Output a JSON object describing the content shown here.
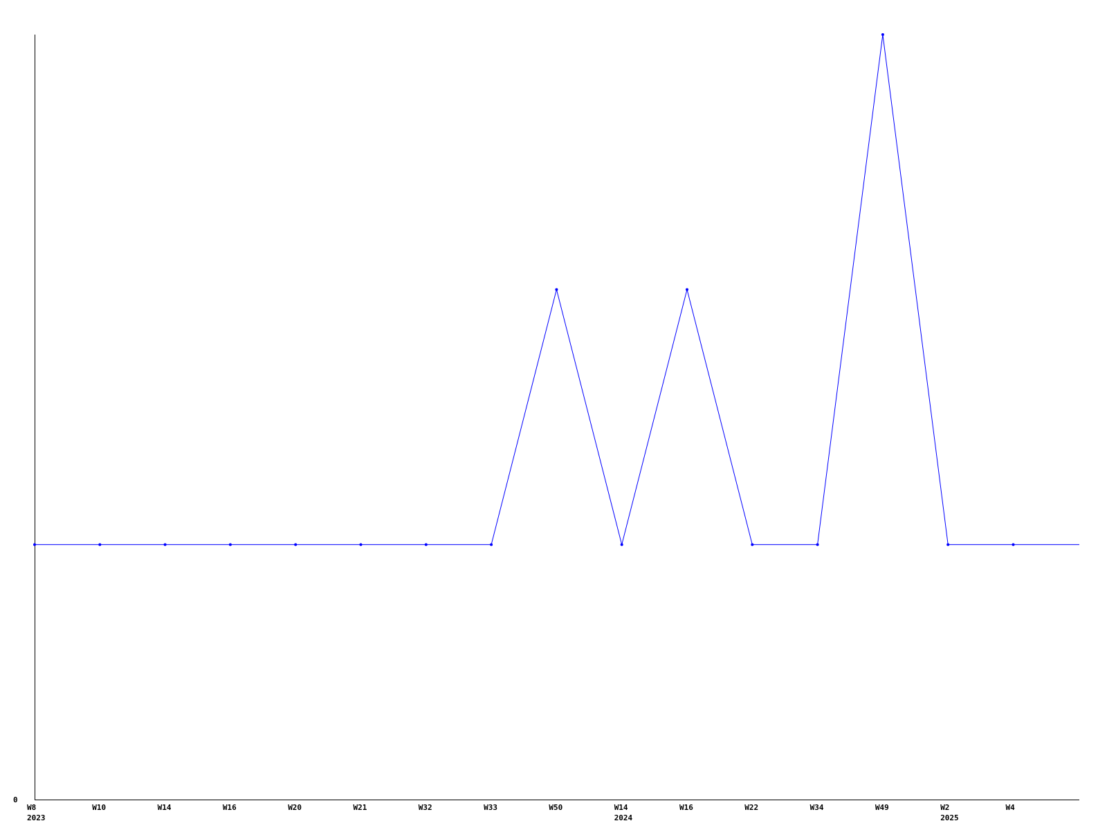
{
  "chart_data": {
    "type": "line",
    "title": "",
    "xlabel": "",
    "ylabel": "",
    "categories": [
      "W8",
      "W10",
      "W14",
      "W16",
      "W20",
      "W21",
      "W32",
      "W33",
      "W50",
      "W14",
      "W16",
      "W22",
      "W34",
      "W49",
      "W2",
      "W4"
    ],
    "year_labels": [
      {
        "index": 0,
        "label": "2023"
      },
      {
        "index": 9,
        "label": "2024"
      },
      {
        "index": 14,
        "label": "2025"
      }
    ],
    "series": [
      {
        "values": [
          1,
          1,
          1,
          1,
          1,
          1,
          1,
          1,
          2,
          1,
          2,
          1,
          1,
          3,
          1,
          1
        ],
        "color": "#0000ff"
      }
    ],
    "trailing_value": 1,
    "y_tick_labels": [
      "0"
    ],
    "ylim": [
      0,
      3
    ],
    "grid": false,
    "legend": "none",
    "axis_color": "#000000"
  }
}
